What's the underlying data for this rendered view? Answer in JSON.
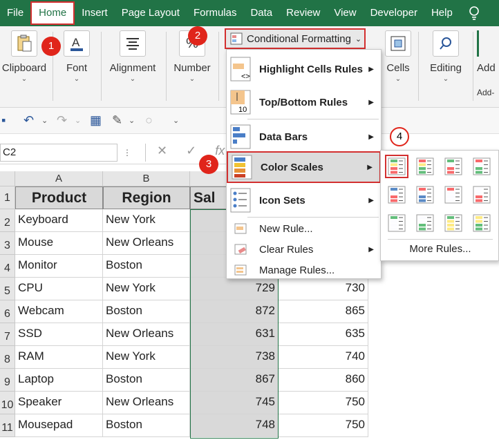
{
  "menu": [
    "File",
    "Home",
    "Insert",
    "Page Layout",
    "Formulas",
    "Data",
    "Review",
    "View",
    "Developer",
    "Help"
  ],
  "ribbon": {
    "clipboard": "Clipboard",
    "font": "Font",
    "alignment": "Alignment",
    "number": "Number",
    "cells": "Cells",
    "editing": "Editing",
    "addins": "Add",
    "addins_sub": "Add-",
    "conditional_formatting": "Conditional Formatting"
  },
  "formula_bar": {
    "name_box": "C2",
    "fx": "fx"
  },
  "columns": [
    "A",
    "B"
  ],
  "rows": [
    "1",
    "2",
    "3",
    "4",
    "5",
    "6",
    "7",
    "8",
    "9",
    "10",
    "11"
  ],
  "table": {
    "headers": [
      "Product",
      "Region",
      "Sal"
    ],
    "data": [
      {
        "product": "Keyboard",
        "region": "New York",
        "sales": "",
        "target": ""
      },
      {
        "product": "Mouse",
        "region": "New Orleans",
        "sales": "",
        "target": ""
      },
      {
        "product": "Monitor",
        "region": "Boston",
        "sales": "",
        "target": ""
      },
      {
        "product": "CPU",
        "region": "New York",
        "sales": "729",
        "target": "730"
      },
      {
        "product": "Webcam",
        "region": "Boston",
        "sales": "872",
        "target": "865"
      },
      {
        "product": "SSD",
        "region": "New Orleans",
        "sales": "631",
        "target": "635"
      },
      {
        "product": "RAM",
        "region": "New York",
        "sales": "738",
        "target": "740"
      },
      {
        "product": "Laptop",
        "region": "Boston",
        "sales": "867",
        "target": "860"
      },
      {
        "product": "Speaker",
        "region": "New Orleans",
        "sales": "745",
        "target": "750"
      },
      {
        "product": "Mousepad",
        "region": "Boston",
        "sales": "748",
        "target": "750"
      }
    ]
  },
  "dropdown": {
    "highlight": "Highlight Cells Rules",
    "topbottom": "Top/Bottom Rules",
    "databars": "Data Bars",
    "colorscales": "Color Scales",
    "iconsets": "Icon Sets",
    "newrule": "New Rule...",
    "clearrules": "Clear Rules",
    "managerules": "Manage Rules..."
  },
  "submenu": {
    "more": "More Rules..."
  },
  "badges": [
    "1",
    "2",
    "3",
    "4"
  ],
  "colors": {
    "excel_green": "#217346",
    "annotation_red": "#e0251b"
  }
}
